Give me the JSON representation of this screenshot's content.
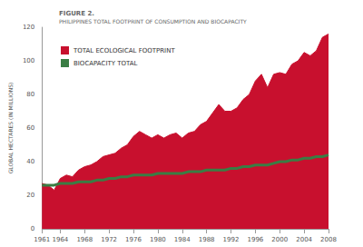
{
  "chart_data": {
    "type": "line",
    "title": "FIGURE 2.",
    "subtitle": "PHILIPPINES TOTAL FOOTPRINT OF CONSUMPTION AND BIOCAPACITY",
    "y_label": "GLOBAL HECTARES (IN MILLIONS)",
    "x": [
      1961,
      1962,
      1963,
      1964,
      1965,
      1966,
      1967,
      1968,
      1969,
      1970,
      1971,
      1972,
      1973,
      1974,
      1975,
      1976,
      1977,
      1978,
      1979,
      1980,
      1981,
      1982,
      1983,
      1984,
      1985,
      1986,
      1987,
      1988,
      1989,
      1990,
      1991,
      1992,
      1993,
      1994,
      1995,
      1996,
      1997,
      1998,
      1999,
      2000,
      2001,
      2002,
      2003,
      2004,
      2005,
      2006,
      2007,
      2008
    ],
    "series": [
      {
        "name": "TOTAL ECOLOGICAL FOOTPRINT",
        "type": "area",
        "color": "#c8102e",
        "values": [
          27,
          26,
          23,
          30,
          32,
          31,
          35,
          37,
          38,
          40,
          43,
          44,
          45,
          48,
          50,
          55,
          58,
          56,
          54,
          56,
          54,
          56,
          57,
          54,
          57,
          58,
          62,
          64,
          69,
          74,
          70,
          70,
          72,
          77,
          80,
          88,
          92,
          84,
          92,
          93,
          92,
          98,
          100,
          105,
          103,
          106,
          114,
          116
        ]
      },
      {
        "name": "BIOCAPACITY TOTAL",
        "type": "line",
        "color": "#3a7d44",
        "values": [
          26,
          26,
          26,
          27,
          27,
          27,
          28,
          28,
          28,
          29,
          29,
          30,
          30,
          31,
          31,
          32,
          32,
          32,
          32,
          33,
          33,
          33,
          33,
          33,
          34,
          34,
          34,
          35,
          35,
          35,
          35,
          36,
          36,
          37,
          37,
          38,
          38,
          38,
          39,
          40,
          40,
          41,
          41,
          42,
          42,
          43,
          43,
          44
        ]
      }
    ],
    "xlim": [
      1961,
      2008
    ],
    "xticks": [
      1961,
      1964,
      1968,
      1972,
      1976,
      1980,
      1984,
      1988,
      1992,
      1996,
      2000,
      2004,
      2008
    ],
    "ylim": [
      0,
      120
    ],
    "yticks": [
      0,
      20,
      40,
      60,
      80,
      100,
      120
    ],
    "grid": false,
    "legend": "upper left"
  }
}
